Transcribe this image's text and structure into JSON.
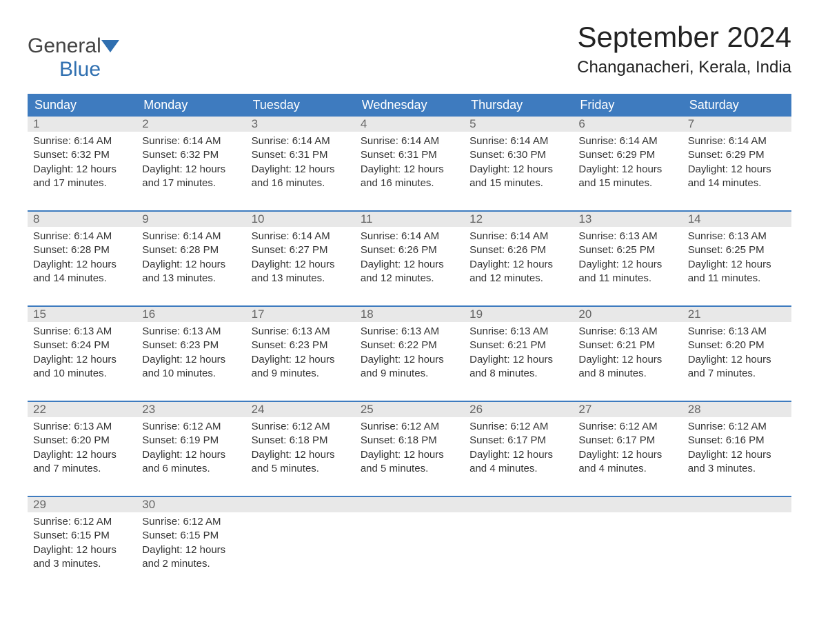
{
  "logo": {
    "word1": "General",
    "word2": "Blue"
  },
  "title": "September 2024",
  "location": "Changanacheri, Kerala, India",
  "colors": {
    "header_bg": "#3e7bbf",
    "header_text": "#ffffff",
    "daynum_bg": "#e8e8e8",
    "daynum_text": "#666666",
    "body_text": "#333333",
    "rule": "#3e7bbf",
    "logo_blue": "#2f6fb0"
  },
  "day_names": [
    "Sunday",
    "Monday",
    "Tuesday",
    "Wednesday",
    "Thursday",
    "Friday",
    "Saturday"
  ],
  "weeks": [
    [
      {
        "n": "1",
        "sunrise": "6:14 AM",
        "sunset": "6:32 PM",
        "dl1": "Daylight: 12 hours",
        "dl2": "and 17 minutes."
      },
      {
        "n": "2",
        "sunrise": "6:14 AM",
        "sunset": "6:32 PM",
        "dl1": "Daylight: 12 hours",
        "dl2": "and 17 minutes."
      },
      {
        "n": "3",
        "sunrise": "6:14 AM",
        "sunset": "6:31 PM",
        "dl1": "Daylight: 12 hours",
        "dl2": "and 16 minutes."
      },
      {
        "n": "4",
        "sunrise": "6:14 AM",
        "sunset": "6:31 PM",
        "dl1": "Daylight: 12 hours",
        "dl2": "and 16 minutes."
      },
      {
        "n": "5",
        "sunrise": "6:14 AM",
        "sunset": "6:30 PM",
        "dl1": "Daylight: 12 hours",
        "dl2": "and 15 minutes."
      },
      {
        "n": "6",
        "sunrise": "6:14 AM",
        "sunset": "6:29 PM",
        "dl1": "Daylight: 12 hours",
        "dl2": "and 15 minutes."
      },
      {
        "n": "7",
        "sunrise": "6:14 AM",
        "sunset": "6:29 PM",
        "dl1": "Daylight: 12 hours",
        "dl2": "and 14 minutes."
      }
    ],
    [
      {
        "n": "8",
        "sunrise": "6:14 AM",
        "sunset": "6:28 PM",
        "dl1": "Daylight: 12 hours",
        "dl2": "and 14 minutes."
      },
      {
        "n": "9",
        "sunrise": "6:14 AM",
        "sunset": "6:28 PM",
        "dl1": "Daylight: 12 hours",
        "dl2": "and 13 minutes."
      },
      {
        "n": "10",
        "sunrise": "6:14 AM",
        "sunset": "6:27 PM",
        "dl1": "Daylight: 12 hours",
        "dl2": "and 13 minutes."
      },
      {
        "n": "11",
        "sunrise": "6:14 AM",
        "sunset": "6:26 PM",
        "dl1": "Daylight: 12 hours",
        "dl2": "and 12 minutes."
      },
      {
        "n": "12",
        "sunrise": "6:14 AM",
        "sunset": "6:26 PM",
        "dl1": "Daylight: 12 hours",
        "dl2": "and 12 minutes."
      },
      {
        "n": "13",
        "sunrise": "6:13 AM",
        "sunset": "6:25 PM",
        "dl1": "Daylight: 12 hours",
        "dl2": "and 11 minutes."
      },
      {
        "n": "14",
        "sunrise": "6:13 AM",
        "sunset": "6:25 PM",
        "dl1": "Daylight: 12 hours",
        "dl2": "and 11 minutes."
      }
    ],
    [
      {
        "n": "15",
        "sunrise": "6:13 AM",
        "sunset": "6:24 PM",
        "dl1": "Daylight: 12 hours",
        "dl2": "and 10 minutes."
      },
      {
        "n": "16",
        "sunrise": "6:13 AM",
        "sunset": "6:23 PM",
        "dl1": "Daylight: 12 hours",
        "dl2": "and 10 minutes."
      },
      {
        "n": "17",
        "sunrise": "6:13 AM",
        "sunset": "6:23 PM",
        "dl1": "Daylight: 12 hours",
        "dl2": "and 9 minutes."
      },
      {
        "n": "18",
        "sunrise": "6:13 AM",
        "sunset": "6:22 PM",
        "dl1": "Daylight: 12 hours",
        "dl2": "and 9 minutes."
      },
      {
        "n": "19",
        "sunrise": "6:13 AM",
        "sunset": "6:21 PM",
        "dl1": "Daylight: 12 hours",
        "dl2": "and 8 minutes."
      },
      {
        "n": "20",
        "sunrise": "6:13 AM",
        "sunset": "6:21 PM",
        "dl1": "Daylight: 12 hours",
        "dl2": "and 8 minutes."
      },
      {
        "n": "21",
        "sunrise": "6:13 AM",
        "sunset": "6:20 PM",
        "dl1": "Daylight: 12 hours",
        "dl2": "and 7 minutes."
      }
    ],
    [
      {
        "n": "22",
        "sunrise": "6:13 AM",
        "sunset": "6:20 PM",
        "dl1": "Daylight: 12 hours",
        "dl2": "and 7 minutes."
      },
      {
        "n": "23",
        "sunrise": "6:12 AM",
        "sunset": "6:19 PM",
        "dl1": "Daylight: 12 hours",
        "dl2": "and 6 minutes."
      },
      {
        "n": "24",
        "sunrise": "6:12 AM",
        "sunset": "6:18 PM",
        "dl1": "Daylight: 12 hours",
        "dl2": "and 5 minutes."
      },
      {
        "n": "25",
        "sunrise": "6:12 AM",
        "sunset": "6:18 PM",
        "dl1": "Daylight: 12 hours",
        "dl2": "and 5 minutes."
      },
      {
        "n": "26",
        "sunrise": "6:12 AM",
        "sunset": "6:17 PM",
        "dl1": "Daylight: 12 hours",
        "dl2": "and 4 minutes."
      },
      {
        "n": "27",
        "sunrise": "6:12 AM",
        "sunset": "6:17 PM",
        "dl1": "Daylight: 12 hours",
        "dl2": "and 4 minutes."
      },
      {
        "n": "28",
        "sunrise": "6:12 AM",
        "sunset": "6:16 PM",
        "dl1": "Daylight: 12 hours",
        "dl2": "and 3 minutes."
      }
    ],
    [
      {
        "n": "29",
        "sunrise": "6:12 AM",
        "sunset": "6:15 PM",
        "dl1": "Daylight: 12 hours",
        "dl2": "and 3 minutes."
      },
      {
        "n": "30",
        "sunrise": "6:12 AM",
        "sunset": "6:15 PM",
        "dl1": "Daylight: 12 hours",
        "dl2": "and 2 minutes."
      },
      null,
      null,
      null,
      null,
      null
    ]
  ],
  "labels": {
    "sunrise_prefix": "Sunrise: ",
    "sunset_prefix": "Sunset: "
  }
}
